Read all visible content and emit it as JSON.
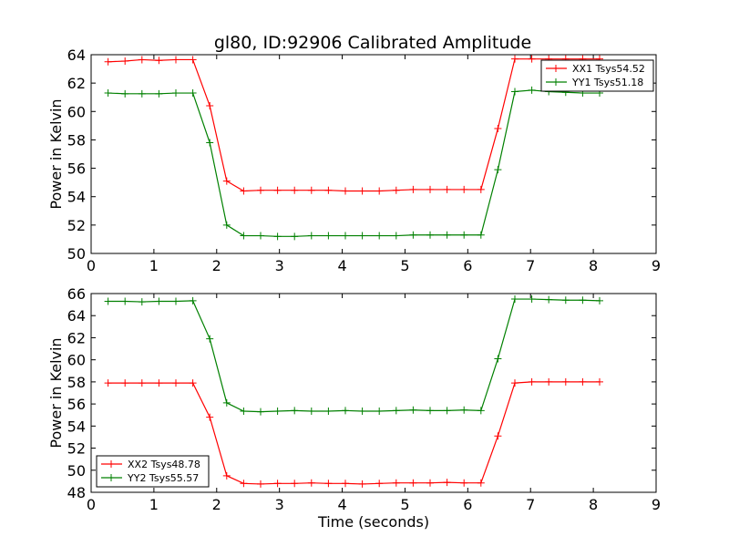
{
  "figure": {
    "title": "gl80, ID:92906 Calibrated Amplitude"
  },
  "chart_data": [
    {
      "type": "line",
      "title": "gl80, ID:92906 Calibrated Amplitude",
      "xlabel": "",
      "ylabel": "Power in Kelvin",
      "xlim": [
        0,
        9
      ],
      "ylim": [
        50,
        64
      ],
      "xticks": [
        0,
        1,
        2,
        3,
        4,
        5,
        6,
        7,
        8,
        9
      ],
      "yticks": [
        50,
        52,
        54,
        56,
        58,
        60,
        62,
        64
      ],
      "legend_position": "top-right",
      "series": [
        {
          "name": "XX1 Tsys54.52",
          "color": "#ff0000",
          "marker": "plus",
          "x": [
            0.27,
            0.54,
            0.81,
            1.08,
            1.35,
            1.62,
            1.89,
            2.16,
            2.43,
            2.7,
            2.97,
            3.24,
            3.51,
            3.78,
            4.05,
            4.32,
            4.59,
            4.86,
            5.13,
            5.4,
            5.67,
            5.94,
            6.21,
            6.48,
            6.75,
            7.02,
            7.29,
            7.56,
            7.83,
            8.1
          ],
          "y": [
            63.5,
            63.55,
            63.65,
            63.6,
            63.65,
            63.65,
            60.4,
            55.1,
            54.4,
            54.45,
            54.45,
            54.45,
            54.45,
            54.45,
            54.4,
            54.4,
            54.4,
            54.45,
            54.5,
            54.5,
            54.5,
            54.5,
            54.5,
            58.8,
            63.7,
            63.7,
            63.7,
            63.7,
            63.7,
            63.7
          ]
        },
        {
          "name": "YY1 Tsys51.18",
          "color": "#008000",
          "marker": "plus",
          "x": [
            0.27,
            0.54,
            0.81,
            1.08,
            1.35,
            1.62,
            1.89,
            2.16,
            2.43,
            2.7,
            2.97,
            3.24,
            3.51,
            3.78,
            4.05,
            4.32,
            4.59,
            4.86,
            5.13,
            5.4,
            5.67,
            5.94,
            6.21,
            6.48,
            6.75,
            7.02,
            7.29,
            7.56,
            7.83,
            8.1
          ],
          "y": [
            61.3,
            61.25,
            61.25,
            61.25,
            61.3,
            61.3,
            57.8,
            52.0,
            51.25,
            51.25,
            51.2,
            51.2,
            51.25,
            51.25,
            51.25,
            51.25,
            51.25,
            51.25,
            51.3,
            51.3,
            51.3,
            51.3,
            51.3,
            55.9,
            61.4,
            61.5,
            61.4,
            61.35,
            61.3,
            61.3
          ]
        }
      ]
    },
    {
      "type": "line",
      "title": "",
      "xlabel": "Time (seconds)",
      "ylabel": "Power in Kelvin",
      "xlim": [
        0,
        9
      ],
      "ylim": [
        48,
        66
      ],
      "xticks": [
        0,
        1,
        2,
        3,
        4,
        5,
        6,
        7,
        8,
        9
      ],
      "yticks": [
        48,
        50,
        52,
        54,
        56,
        58,
        60,
        62,
        64,
        66
      ],
      "legend_position": "bottom-left",
      "series": [
        {
          "name": "XX2 Tsys48.78",
          "color": "#ff0000",
          "marker": "plus",
          "x": [
            0.27,
            0.54,
            0.81,
            1.08,
            1.35,
            1.62,
            1.89,
            2.16,
            2.43,
            2.7,
            2.97,
            3.24,
            3.51,
            3.78,
            4.05,
            4.32,
            4.59,
            4.86,
            5.13,
            5.4,
            5.67,
            5.94,
            6.21,
            6.48,
            6.75,
            7.02,
            7.29,
            7.56,
            7.83,
            8.1
          ],
          "y": [
            57.9,
            57.9,
            57.9,
            57.9,
            57.9,
            57.9,
            54.8,
            49.5,
            48.8,
            48.75,
            48.8,
            48.8,
            48.85,
            48.8,
            48.8,
            48.75,
            48.8,
            48.85,
            48.85,
            48.85,
            48.9,
            48.85,
            48.85,
            53.1,
            57.9,
            58.0,
            58.0,
            58.0,
            58.0,
            58.0
          ]
        },
        {
          "name": "YY2 Tsys55.57",
          "color": "#008000",
          "marker": "plus",
          "x": [
            0.27,
            0.54,
            0.81,
            1.08,
            1.35,
            1.62,
            1.89,
            2.16,
            2.43,
            2.7,
            2.97,
            3.24,
            3.51,
            3.78,
            4.05,
            4.32,
            4.59,
            4.86,
            5.13,
            5.4,
            5.67,
            5.94,
            6.21,
            6.48,
            6.75,
            7.02,
            7.29,
            7.56,
            7.83,
            8.1
          ],
          "y": [
            65.3,
            65.3,
            65.25,
            65.3,
            65.3,
            65.35,
            61.9,
            56.1,
            55.35,
            55.3,
            55.35,
            55.4,
            55.35,
            55.35,
            55.4,
            55.35,
            55.35,
            55.4,
            55.45,
            55.4,
            55.4,
            55.45,
            55.4,
            60.1,
            65.5,
            65.5,
            65.45,
            65.4,
            65.4,
            65.35
          ]
        }
      ]
    }
  ]
}
